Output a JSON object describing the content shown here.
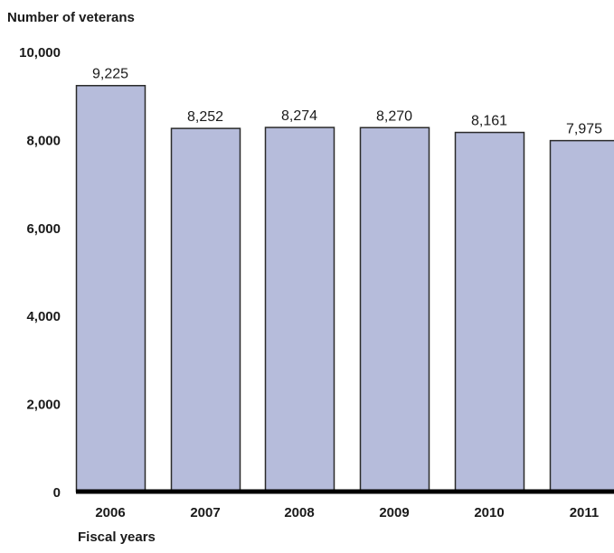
{
  "chart_data": {
    "type": "bar",
    "title": "",
    "ylabel": "Number of veterans",
    "xlabel": "Fiscal years",
    "categories": [
      "2006",
      "2007",
      "2008",
      "2009",
      "2010",
      "2011"
    ],
    "values": [
      9225,
      8252,
      8274,
      8270,
      8161,
      7975
    ],
    "data_labels": [
      "9,225",
      "8,252",
      "8,274",
      "8,270",
      "8,161",
      "7,975"
    ],
    "ylim": [
      0,
      10000
    ],
    "yticks": [
      0,
      2000,
      4000,
      6000,
      8000,
      10000
    ],
    "ytick_labels": [
      "0",
      "2,000",
      "4,000",
      "6,000",
      "8,000",
      "10,000"
    ],
    "grid": false,
    "colors": {
      "bar_fill": "#b6bcdb",
      "bar_stroke": "#2a2a2a",
      "baseline": "#000000",
      "text": "#1a1a1a"
    }
  }
}
